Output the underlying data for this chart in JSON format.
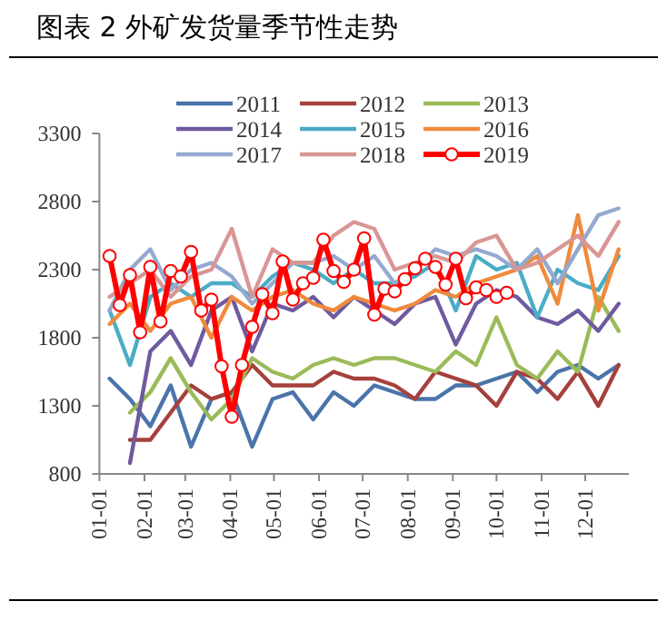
{
  "chart_data": {
    "type": "line",
    "title": "图表 2 外矿发货量季节性走势",
    "xlim": [
      "--01-01",
      "--12-31"
    ],
    "xticks": [
      {
        "value": "--01-01",
        "label": "01-01"
      },
      {
        "value": "--02-01",
        "label": "02-01"
      },
      {
        "value": "--03-01",
        "label": "03-01"
      },
      {
        "value": "--04-01",
        "label": "04-01"
      },
      {
        "value": "--05-01",
        "label": "05-01"
      },
      {
        "value": "--06-01",
        "label": "06-01"
      },
      {
        "value": "--07-01",
        "label": "07-01"
      },
      {
        "value": "--08-01",
        "label": "08-01"
      },
      {
        "value": "--09-01",
        "label": "09-01"
      },
      {
        "value": "--10-01",
        "label": "10-01"
      },
      {
        "value": "--11-01",
        "label": "11-01"
      },
      {
        "value": "--12-01",
        "label": "12-01"
      }
    ],
    "ylim": [
      800,
      3300
    ],
    "yticks": [
      800,
      1300,
      1800,
      2300,
      2800,
      3300
    ],
    "legend": "top",
    "grid": false,
    "series": [
      {
        "name": "2011",
        "color": "#4a74aa",
        "x": [
          "--01-08",
          "--01-22",
          "--02-05",
          "--02-19",
          "--03-05",
          "--03-19",
          "--04-02",
          "--04-16",
          "--04-30",
          "--05-14",
          "--05-28",
          "--06-11",
          "--06-25",
          "--07-09",
          "--07-23",
          "--08-06",
          "--08-20",
          "--09-03",
          "--09-17",
          "--10-01",
          "--10-15",
          "--10-29",
          "--11-12",
          "--11-26",
          "--12-10",
          "--12-24"
        ],
        "values": [
          1500,
          1350,
          1150,
          1450,
          1000,
          1350,
          1400,
          1000,
          1350,
          1400,
          1200,
          1400,
          1300,
          1450,
          1400,
          1350,
          1350,
          1450,
          1450,
          1500,
          1550,
          1400,
          1550,
          1600,
          1500,
          1600
        ]
      },
      {
        "name": "2012",
        "color": "#a5403c",
        "x": [
          "--01-22",
          "--02-05",
          "--02-19",
          "--03-05",
          "--03-19",
          "--04-02",
          "--04-16",
          "--04-30",
          "--05-14",
          "--05-28",
          "--06-11",
          "--06-25",
          "--07-09",
          "--07-23",
          "--08-06",
          "--08-20",
          "--09-03",
          "--09-17",
          "--10-01",
          "--10-15",
          "--10-29",
          "--11-12",
          "--11-26",
          "--12-10",
          "--12-24"
        ],
        "values": [
          1050,
          1050,
          1250,
          1450,
          1350,
          1400,
          1600,
          1450,
          1450,
          1450,
          1550,
          1500,
          1500,
          1450,
          1350,
          1550,
          1500,
          1450,
          1300,
          1550,
          1500,
          1350,
          1550,
          1300,
          1600
        ]
      },
      {
        "name": "2013",
        "color": "#9bbb59",
        "x": [
          "--01-22",
          "--02-05",
          "--02-19",
          "--03-05",
          "--03-19",
          "--04-02",
          "--04-16",
          "--04-30",
          "--05-14",
          "--05-28",
          "--06-11",
          "--06-25",
          "--07-09",
          "--07-23",
          "--08-06",
          "--08-20",
          "--09-03",
          "--09-17",
          "--10-01",
          "--10-15",
          "--10-29",
          "--11-12",
          "--11-26",
          "--12-10",
          "--12-24"
        ],
        "values": [
          1250,
          1400,
          1650,
          1400,
          1200,
          1350,
          1650,
          1550,
          1500,
          1600,
          1650,
          1600,
          1650,
          1650,
          1600,
          1550,
          1700,
          1600,
          1950,
          1600,
          1500,
          1700,
          1550,
          2100,
          1850
        ]
      },
      {
        "name": "2014",
        "color": "#6f5aa0",
        "x": [
          "--01-22",
          "--02-05",
          "--02-19",
          "--03-05",
          "--03-19",
          "--04-02",
          "--04-16",
          "--04-30",
          "--05-14",
          "--05-28",
          "--06-11",
          "--06-25",
          "--07-09",
          "--07-23",
          "--08-06",
          "--08-20",
          "--09-03",
          "--09-17",
          "--10-01",
          "--10-15",
          "--10-29",
          "--11-12",
          "--11-26",
          "--12-10",
          "--12-24"
        ],
        "values": [
          880,
          1700,
          1850,
          1600,
          2000,
          2100,
          1700,
          2050,
          2000,
          2100,
          1950,
          2100,
          2000,
          1900,
          2050,
          2100,
          1750,
          2050,
          2150,
          2100,
          1950,
          1900,
          2000,
          1850,
          2050
        ]
      },
      {
        "name": "2015",
        "color": "#4bacc6",
        "x": [
          "--01-08",
          "--01-22",
          "--02-05",
          "--02-19",
          "--03-05",
          "--03-19",
          "--04-02",
          "--04-16",
          "--04-30",
          "--05-14",
          "--05-28",
          "--06-11",
          "--06-25",
          "--07-09",
          "--07-23",
          "--08-06",
          "--08-20",
          "--09-03",
          "--09-17",
          "--10-01",
          "--10-15",
          "--10-29",
          "--11-12",
          "--11-26",
          "--12-10",
          "--12-24"
        ],
        "values": [
          2000,
          1600,
          2100,
          2200,
          2100,
          2200,
          2200,
          2100,
          2250,
          2350,
          2300,
          2200,
          2300,
          2200,
          2200,
          2250,
          2350,
          2000,
          2400,
          2300,
          2350,
          1950,
          2300,
          2200,
          2150,
          2400
        ]
      },
      {
        "name": "2016",
        "color": "#f08a3c",
        "x": [
          "--01-08",
          "--01-22",
          "--02-05",
          "--02-19",
          "--03-05",
          "--03-19",
          "--04-02",
          "--04-16",
          "--04-30",
          "--05-14",
          "--05-28",
          "--06-11",
          "--06-25",
          "--07-09",
          "--07-23",
          "--08-06",
          "--08-20",
          "--09-03",
          "--09-17",
          "--10-01",
          "--10-15",
          "--10-29",
          "--11-12",
          "--11-26",
          "--12-10",
          "--12-24"
        ],
        "values": [
          1900,
          2050,
          1850,
          2050,
          2100,
          1800,
          2100,
          2000,
          2100,
          2150,
          2050,
          2000,
          2100,
          2050,
          2000,
          2050,
          2150,
          2100,
          2200,
          2250,
          2300,
          2400,
          2050,
          2700,
          2000,
          2450
        ]
      },
      {
        "name": "2017",
        "color": "#95a9d0",
        "x": [
          "--01-08",
          "--01-22",
          "--02-05",
          "--02-19",
          "--03-05",
          "--03-19",
          "--04-02",
          "--04-16",
          "--04-30",
          "--05-14",
          "--05-28",
          "--06-11",
          "--06-25",
          "--07-09",
          "--07-23",
          "--08-06",
          "--08-20",
          "--09-03",
          "--09-17",
          "--10-01",
          "--10-15",
          "--10-29",
          "--11-12",
          "--11-26",
          "--12-10",
          "--12-24"
        ],
        "values": [
          2000,
          2300,
          2450,
          2150,
          2300,
          2350,
          2250,
          2050,
          2200,
          2350,
          2350,
          2400,
          2300,
          2400,
          2200,
          2300,
          2450,
          2400,
          2450,
          2400,
          2300,
          2450,
          2200,
          2450,
          2700,
          2750
        ]
      },
      {
        "name": "2018",
        "color": "#d99694",
        "x": [
          "--01-08",
          "--01-22",
          "--02-05",
          "--02-19",
          "--03-05",
          "--03-19",
          "--04-02",
          "--04-16",
          "--04-30",
          "--05-14",
          "--05-28",
          "--06-11",
          "--06-25",
          "--07-09",
          "--07-23",
          "--08-06",
          "--08-20",
          "--09-03",
          "--09-17",
          "--10-01",
          "--10-15",
          "--10-29",
          "--11-12",
          "--11-26",
          "--12-10",
          "--12-24"
        ],
        "values": [
          2100,
          2200,
          2300,
          2100,
          2250,
          2300,
          2600,
          2100,
          2450,
          2350,
          2350,
          2550,
          2650,
          2600,
          2300,
          2350,
          2400,
          2350,
          2500,
          2550,
          2300,
          2350,
          2450,
          2550,
          2400,
          2650
        ]
      },
      {
        "name": "2019",
        "color": "#ff0000",
        "marker": "circle",
        "x": [
          "--01-08",
          "--01-15",
          "--01-22",
          "--01-29",
          "--02-05",
          "--02-12",
          "--02-19",
          "--02-26",
          "--03-05",
          "--03-12",
          "--03-19",
          "--03-26",
          "--04-02",
          "--04-09",
          "--04-16",
          "--04-23",
          "--04-30",
          "--05-07",
          "--05-14",
          "--05-21",
          "--05-28",
          "--06-04",
          "--06-11",
          "--06-18",
          "--06-25",
          "--07-02",
          "--07-09",
          "--07-16",
          "--07-23",
          "--07-30",
          "--08-06",
          "--08-13",
          "--08-20",
          "--08-27",
          "--09-03",
          "--09-10",
          "--09-17",
          "--09-24",
          "--10-01",
          "--10-08"
        ],
        "values": [
          2400,
          2040,
          2260,
          1840,
          2320,
          1920,
          2290,
          2250,
          2430,
          2000,
          2080,
          1590,
          1220,
          1600,
          1880,
          2120,
          1980,
          2360,
          2080,
          2200,
          2240,
          2520,
          2290,
          2210,
          2300,
          2530,
          1970,
          2160,
          2140,
          2230,
          2310,
          2380,
          2320,
          2190,
          2380,
          2090,
          2170,
          2150,
          2100,
          2130
        ]
      }
    ]
  }
}
